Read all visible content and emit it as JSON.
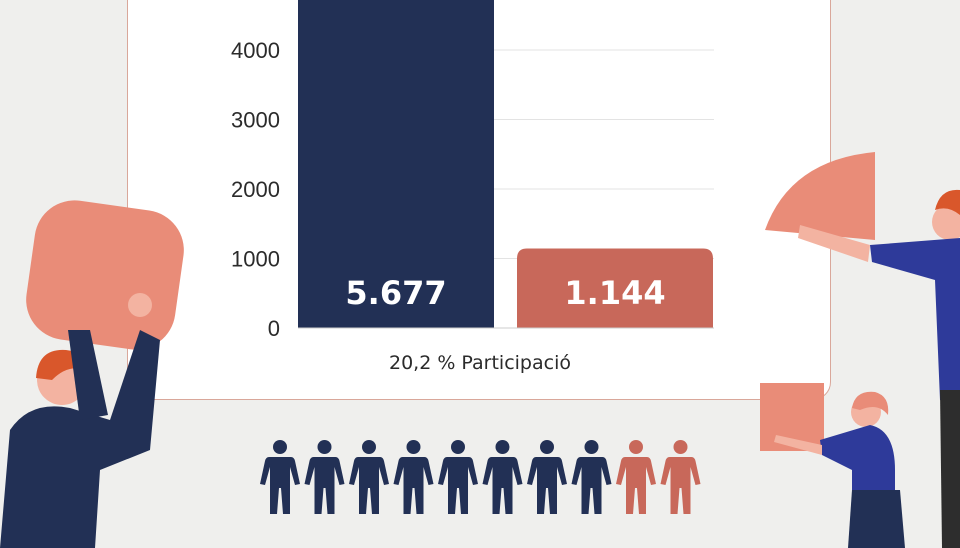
{
  "chart_data": {
    "type": "bar",
    "categories": [
      "",
      ""
    ],
    "values": [
      5677,
      1144
    ],
    "value_labels": [
      "5.677",
      "1.144"
    ],
    "bar_colors": [
      "#223055",
      "#c8685a"
    ],
    "y_ticks": [
      0,
      1000,
      2000,
      3000,
      4000
    ],
    "ylim": [
      0,
      4000
    ],
    "xlabel": "20,2 % Participació",
    "ylabel": "",
    "grid": true
  },
  "people_icons": {
    "total": 10,
    "highlighted": 2,
    "base_color": "#223055",
    "highlight_color": "#c8685a"
  },
  "illustrations": [
    "person-holding-rounded-square",
    "person-holding-pie-slice",
    "person-holding-square"
  ]
}
